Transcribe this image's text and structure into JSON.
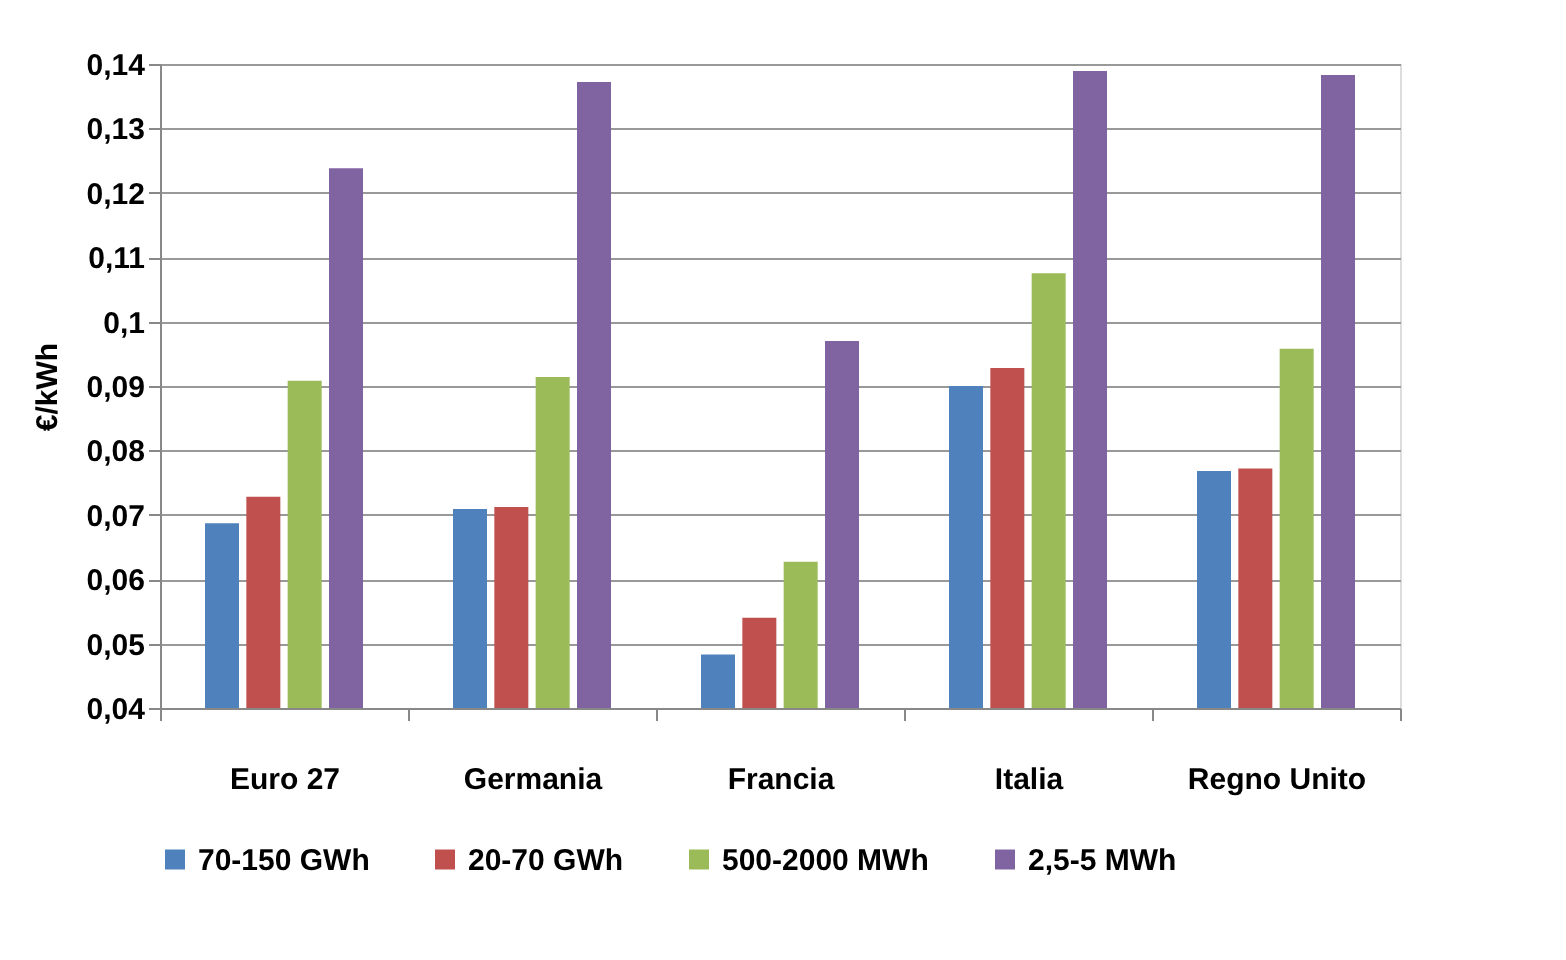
{
  "chart_data": {
    "type": "bar",
    "ylabel": "€/kWh",
    "categories": [
      "Euro 27",
      "Germania",
      "Francia",
      "Italia",
      "Regno Unito"
    ],
    "series": [
      {
        "name": "70-150 GWh",
        "color": "#4f81bd",
        "values": [
          0.0687,
          0.0709,
          0.0483,
          0.09,
          0.0768
        ]
      },
      {
        "name": "20-70 GWh",
        "color": "#c0504d",
        "values": [
          0.0728,
          0.0712,
          0.054,
          0.0928,
          0.0772
        ]
      },
      {
        "name": "500-2000 MWh",
        "color": "#9bbb59",
        "values": [
          0.0908,
          0.0914,
          0.0627,
          0.1075,
          0.0958
        ]
      },
      {
        "name": "2,5-5 MWh",
        "color": "#8064a2",
        "values": [
          0.1238,
          0.1372,
          0.097,
          0.1389,
          0.1383
        ]
      }
    ],
    "ylim": [
      0.04,
      0.14
    ],
    "yticks": [
      {
        "value": 0.04,
        "label": "0,04"
      },
      {
        "value": 0.05,
        "label": "0,05"
      },
      {
        "value": 0.06,
        "label": "0,06"
      },
      {
        "value": 0.07,
        "label": "0,07"
      },
      {
        "value": 0.08,
        "label": "0,08"
      },
      {
        "value": 0.09,
        "label": "0,09"
      },
      {
        "value": 0.1,
        "label": "0,1"
      },
      {
        "value": 0.11,
        "label": "0,11"
      },
      {
        "value": 0.12,
        "label": "0,12"
      },
      {
        "value": 0.13,
        "label": "0,13"
      },
      {
        "value": 0.14,
        "label": "0,14"
      }
    ],
    "grid": "y",
    "legend": "bottom"
  }
}
